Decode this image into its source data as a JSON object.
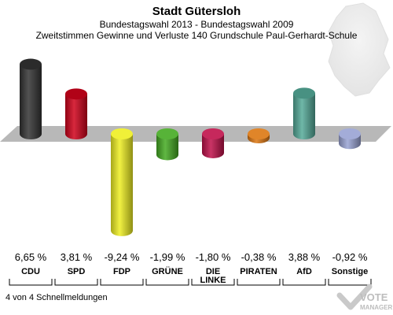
{
  "chart_data": {
    "type": "bar",
    "title": "Stadt Gütersloh",
    "subtitle": "Bundestagswahl 2013 - Bundestagswahl 2009",
    "subtitle2": "Zweitstimmen Gewinne und Verluste 140 Grundschule Paul-Gerhardt-Schule",
    "categories": [
      "CDU",
      "SPD",
      "FDP",
      "GRÜNE",
      "DIE LINKE",
      "PIRATEN",
      "AfD",
      "Sonstige"
    ],
    "values": [
      6.65,
      3.81,
      -9.24,
      -1.99,
      -1.8,
      -0.38,
      3.88,
      -0.92
    ],
    "value_labels": [
      "6,65 %",
      "3,81 %",
      "-9,24 %",
      "-1,99 %",
      "-1,80 %",
      "-0,38 %",
      "3,88 %",
      "-0,92 %"
    ],
    "colors": [
      "#333333",
      "#d0021b",
      "#eeee22",
      "#44aa22",
      "#c0104a",
      "#dd7711",
      "#55aa99",
      "#99a3d4"
    ],
    "grid": false,
    "legend": "none"
  },
  "footer": {
    "note": "4 von 4 Schnellmeldungen",
    "logo_text": "VOTE MANAGER"
  }
}
